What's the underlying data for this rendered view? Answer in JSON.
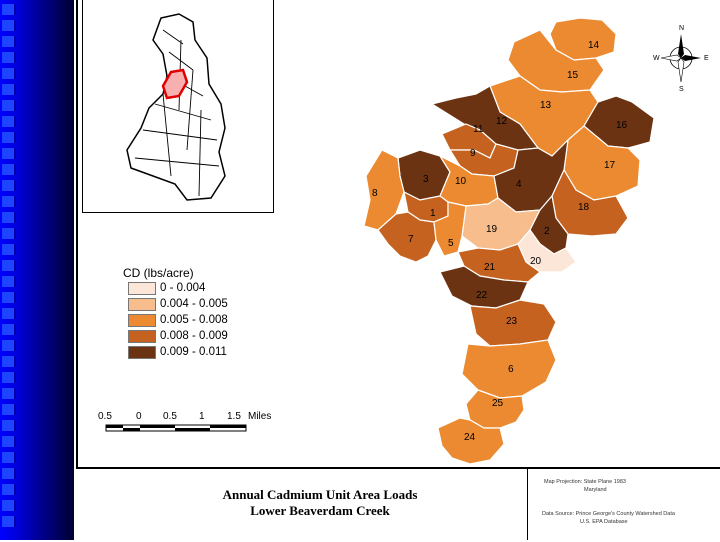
{
  "title": {
    "line1": "Annual Cadmium Unit Area Loads",
    "line2": "Lower Beaverdam Creek"
  },
  "legend": {
    "title": "CD (lbs/acre)",
    "classes": [
      {
        "label": "0 - 0.004",
        "color": "#fbe6d8"
      },
      {
        "label": "0.004 - 0.005",
        "color": "#f7bd8c"
      },
      {
        "label": "0.005 - 0.008",
        "color": "#eb8a31"
      },
      {
        "label": "0.008 - 0.009",
        "color": "#c5621f"
      },
      {
        "label": "0.009 - 0.011",
        "color": "#6b3312"
      }
    ]
  },
  "scale_bar": {
    "labels": [
      "0.5",
      "0",
      "0.5",
      "1",
      "1.5",
      "Miles"
    ]
  },
  "compass": {
    "n": "N",
    "e": "E",
    "s": "S",
    "w": "W"
  },
  "notes": {
    "projection": "Map Projection: State Plane 1983",
    "projection2": "Maryland",
    "data_source": "Data Source: Prince George's County Watershed Data",
    "data_source2": "U.S. EPA Database"
  },
  "subwatersheds": [
    {
      "id": "14",
      "class": 3
    },
    {
      "id": "15",
      "class": 3
    },
    {
      "id": "13",
      "class": 3
    },
    {
      "id": "16",
      "class": 5
    },
    {
      "id": "12",
      "class": 5
    },
    {
      "id": "11",
      "class": 4
    },
    {
      "id": "9",
      "class": 4
    },
    {
      "id": "17",
      "class": 3
    },
    {
      "id": "3",
      "class": 5
    },
    {
      "id": "10",
      "class": 3
    },
    {
      "id": "4",
      "class": 5
    },
    {
      "id": "8",
      "class": 3
    },
    {
      "id": "18",
      "class": 4
    },
    {
      "id": "1",
      "class": 4
    },
    {
      "id": "19",
      "class": 2
    },
    {
      "id": "2",
      "class": 5
    },
    {
      "id": "7",
      "class": 4
    },
    {
      "id": "5",
      "class": 3
    },
    {
      "id": "20",
      "class": 1
    },
    {
      "id": "21",
      "class": 4
    },
    {
      "id": "22",
      "class": 5
    },
    {
      "id": "23",
      "class": 4
    },
    {
      "id": "6",
      "class": 3
    },
    {
      "id": "25",
      "class": 3
    },
    {
      "id": "24",
      "class": 3
    }
  ]
}
